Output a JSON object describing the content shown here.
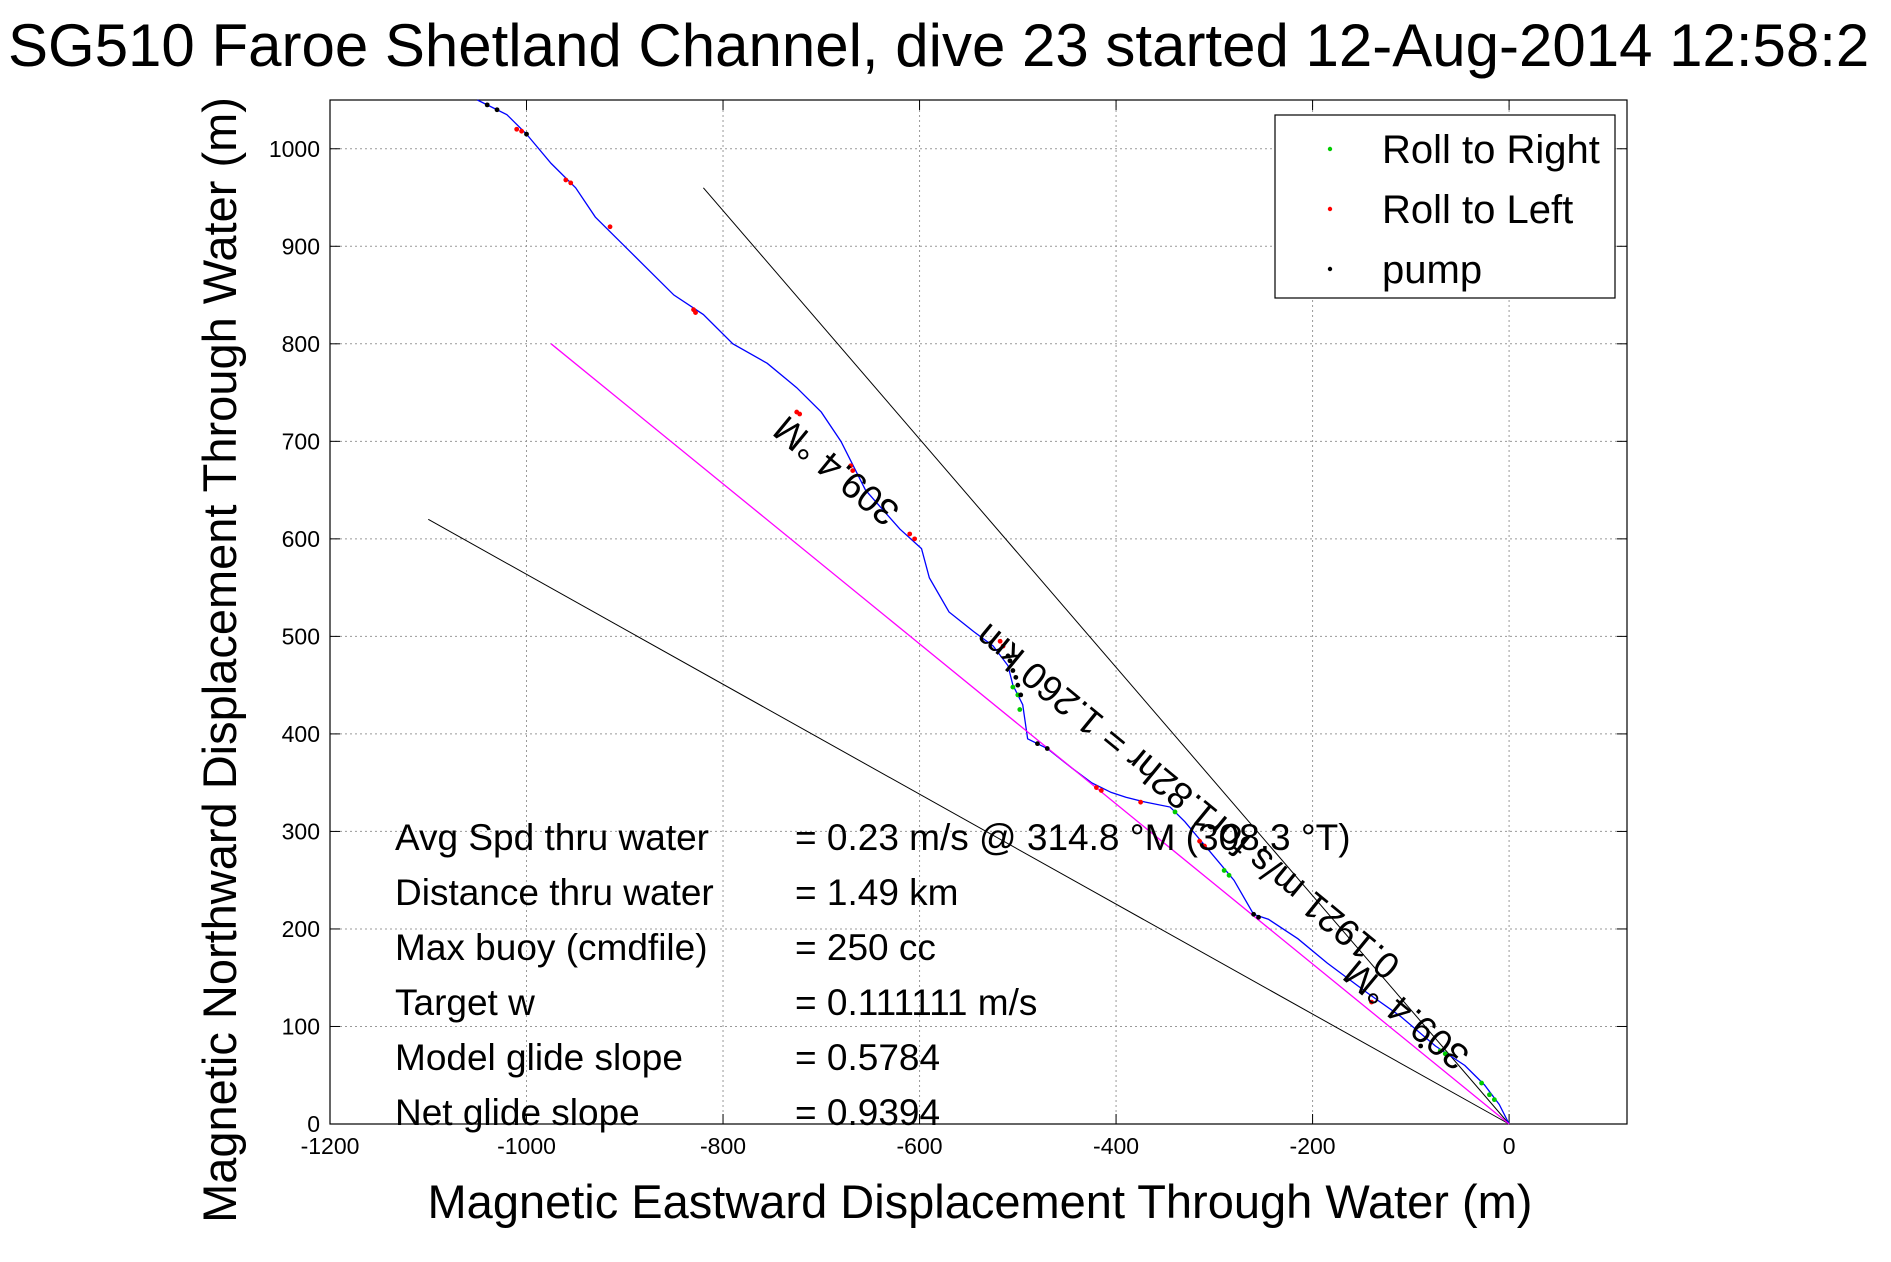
{
  "chart_data": {
    "type": "line",
    "title": "SG510 Faroe Shetland Channel, dive 23 started 12-Aug-2014 12:58:2",
    "xlabel": "Magnetic Eastward Displacement Through Water (m)",
    "ylabel": "Magnetic Northward Displacement Through Water (m)",
    "xlim": [
      -1200,
      120
    ],
    "ylim": [
      0,
      1050
    ],
    "x_ticks": [
      -1200,
      -1000,
      -800,
      -600,
      -400,
      -200,
      0
    ],
    "y_ticks": [
      0,
      100,
      200,
      300,
      400,
      500,
      600,
      700,
      800,
      900,
      1000
    ],
    "grid": true,
    "legend_position": "top-right",
    "legend": [
      {
        "label": "Roll to Right",
        "color": "#00cc00"
      },
      {
        "label": "Roll to Left",
        "color": "#ff0000"
      },
      {
        "label": "pump",
        "color": "#000000"
      }
    ],
    "series": [
      {
        "name": "track",
        "color": "#0000ff",
        "points": [
          [
            0,
            0
          ],
          [
            -10,
            20
          ],
          [
            -25,
            40
          ],
          [
            -45,
            60
          ],
          [
            -75,
            80
          ],
          [
            -110,
            110
          ],
          [
            -145,
            135
          ],
          [
            -185,
            165
          ],
          [
            -215,
            190
          ],
          [
            -245,
            210
          ],
          [
            -260,
            215
          ],
          [
            -280,
            250
          ],
          [
            -305,
            280
          ],
          [
            -330,
            310
          ],
          [
            -345,
            325
          ],
          [
            -370,
            330
          ],
          [
            -390,
            335
          ],
          [
            -405,
            340
          ],
          [
            -425,
            350
          ],
          [
            -445,
            365
          ],
          [
            -470,
            385
          ],
          [
            -490,
            395
          ],
          [
            -495,
            430
          ],
          [
            -505,
            450
          ],
          [
            -510,
            470
          ],
          [
            -525,
            490
          ],
          [
            -545,
            505
          ],
          [
            -570,
            525
          ],
          [
            -590,
            560
          ],
          [
            -598,
            590
          ],
          [
            -620,
            610
          ],
          [
            -655,
            650
          ],
          [
            -680,
            700
          ],
          [
            -700,
            730
          ],
          [
            -725,
            755
          ],
          [
            -755,
            780
          ],
          [
            -790,
            800
          ],
          [
            -820,
            830
          ],
          [
            -850,
            850
          ],
          [
            -880,
            880
          ],
          [
            -905,
            905
          ],
          [
            -930,
            930
          ],
          [
            -950,
            960
          ],
          [
            -975,
            985
          ],
          [
            -1000,
            1015
          ],
          [
            -1020,
            1035
          ],
          [
            -1040,
            1045
          ],
          [
            -1050,
            1050
          ]
        ]
      },
      {
        "name": "heading line",
        "color": "#ff00ff",
        "points": [
          [
            0,
            0
          ],
          [
            -975,
            800
          ]
        ]
      }
    ],
    "guide_lines": [
      {
        "points": [
          [
            0,
            0
          ],
          [
            -820,
            960
          ]
        ]
      },
      {
        "points": [
          [
            0,
            0
          ],
          [
            -1100,
            620
          ]
        ]
      }
    ],
    "markers": [
      {
        "type": "right",
        "color": "#00cc00",
        "points": [
          [
            -15,
            25
          ],
          [
            -20,
            30
          ],
          [
            -28,
            42
          ],
          [
            -65,
            72
          ],
          [
            -70,
            75
          ],
          [
            -285,
            255
          ],
          [
            -290,
            260
          ],
          [
            -340,
            320
          ],
          [
            -500,
            440
          ],
          [
            -505,
            448
          ],
          [
            -498,
            425
          ]
        ]
      },
      {
        "type": "left",
        "color": "#ff0000",
        "points": [
          [
            -1005,
            1018
          ],
          [
            -1010,
            1020
          ],
          [
            -955,
            965
          ],
          [
            -960,
            968
          ],
          [
            -915,
            920
          ],
          [
            -830,
            835
          ],
          [
            -828,
            832
          ],
          [
            -725,
            730
          ],
          [
            -722,
            728
          ],
          [
            -670,
            675
          ],
          [
            -668,
            670
          ],
          [
            -605,
            600
          ],
          [
            -610,
            605
          ],
          [
            -515,
            490
          ],
          [
            -518,
            495
          ],
          [
            -420,
            345
          ],
          [
            -415,
            342
          ],
          [
            -375,
            330
          ],
          [
            -310,
            285
          ],
          [
            -315,
            290
          ],
          [
            -140,
            125
          ]
        ]
      },
      {
        "type": "pump",
        "color": "#000000",
        "points": [
          [
            -1040,
            1045
          ],
          [
            -1030,
            1040
          ],
          [
            -1000,
            1015
          ],
          [
            -510,
            480
          ],
          [
            -508,
            475
          ],
          [
            -505,
            465
          ],
          [
            -502,
            458
          ],
          [
            -500,
            450
          ],
          [
            -497,
            440
          ],
          [
            -480,
            390
          ],
          [
            -470,
            385
          ],
          [
            -260,
            215
          ],
          [
            -255,
            212
          ],
          [
            -90,
            80
          ]
        ]
      }
    ],
    "annotations": [
      {
        "text": "309.4 °M",
        "x": -735,
        "y": 728,
        "angle": 39.4
      },
      {
        "text": "309.4 °M",
        "x": -155,
        "y": 170,
        "angle": 39.4
      },
      {
        "text": "0.1921 m/s for1.82hr = 1.260 km",
        "x": -530,
        "y": 515,
        "angle": 39.4
      }
    ]
  },
  "stats": [
    {
      "label": "Avg Spd thru water",
      "value": "=  0.23 m/s @ 314.8 °M (308.3 °T)"
    },
    {
      "label": "Distance thru water",
      "value": "=  1.49 km"
    },
    {
      "label": "Max buoy (cmdfile)",
      "value": "= 250 cc"
    },
    {
      "label": "Target w",
      "value": "= 0.111111 m/s"
    },
    {
      "label": "Model glide slope",
      "value": "= 0.5784"
    },
    {
      "label": "Net glide slope",
      "value": "= 0.9394"
    }
  ]
}
